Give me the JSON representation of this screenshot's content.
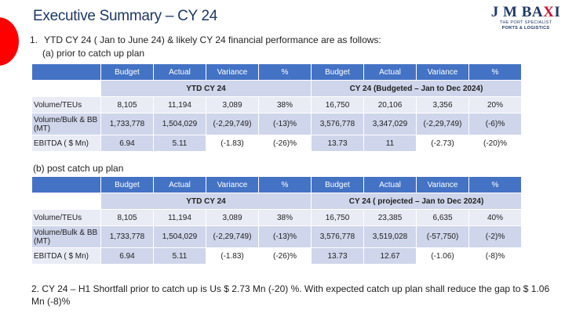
{
  "title": "Executive Summary – CY 24",
  "logo": {
    "brand_main": "J M BA",
    "brand_accent": "X",
    "brand_end": "I",
    "tagline": "THE PORT SPECIALIST",
    "subline": "PORTS & LOGISTICS"
  },
  "point1": {
    "num": "1.",
    "text": "YTD CY 24 ( Jan to June 24) & likely CY 24 financial performance are as follows:"
  },
  "sub_a": "(a) prior to catch up plan",
  "sub_b": "(b) post  catch up plan",
  "columns": [
    "Budget",
    "Actual",
    "Variance",
    "%",
    "Budget",
    "Actual",
    "Variance",
    "%"
  ],
  "table_a": {
    "left_section": "YTD CY 24",
    "right_section": "CY 24 (Budgeted – Jan to Dec 2024)",
    "rows": [
      {
        "label": "Volume/TEUs",
        "cells": [
          "8,105",
          "11,194",
          "3,089",
          "38%",
          "16,750",
          "20,106",
          "3,356",
          "20%"
        ]
      },
      {
        "label": "Volume/Bulk & BB (MT)",
        "cells": [
          "1,733,778",
          "1,504,029",
          "(-2,29,749)",
          "(-13)%",
          "3,576,778",
          "3,347,029",
          "(-2,29,749)",
          "(-6)%"
        ]
      },
      {
        "label": "EBITDA ( $ Mn)",
        "cells": [
          "6.94",
          "5.11",
          "(-1.83)",
          "(-26)%",
          "13.73",
          "11",
          "(-2.73)",
          "(-20)%"
        ]
      }
    ]
  },
  "table_b": {
    "left_section": "YTD CY 24",
    "right_section": "CY 24 ( projected – Jan to Dec 2024)",
    "rows": [
      {
        "label": "Volume/TEUs",
        "cells": [
          "8,105",
          "11,194",
          "3,089",
          "38%",
          "16,750",
          "23,385",
          "6,635",
          "40%"
        ]
      },
      {
        "label": "Volume/Bulk & BB (MT)",
        "cells": [
          "1,733,778",
          "1,504,029",
          "(-2,29,749)",
          "(-13)%",
          "3,576,778",
          "3,519,028",
          "(-57,750)",
          "(-2)%"
        ]
      },
      {
        "label": "EBITDA ( $ Mn)",
        "cells": [
          "6.94",
          "5.11",
          "(-1.83)",
          "(-26)%",
          "13.73",
          "12.67",
          "(-1.06)",
          "(-8)%"
        ]
      }
    ]
  },
  "note": "2. CY 24 – H1 Shortfall prior to catch up is Us $ 2.73 Mn (-20) %. With expected catch up plan shall reduce the gap to $ 1.06 Mn (-8)%",
  "colors": {
    "header_blue": "#4472c4",
    "title_navy": "#1f3864",
    "row_light": "#e9ebf5",
    "row_mid": "#cfd5ea",
    "accent_red": "#ff0000"
  }
}
